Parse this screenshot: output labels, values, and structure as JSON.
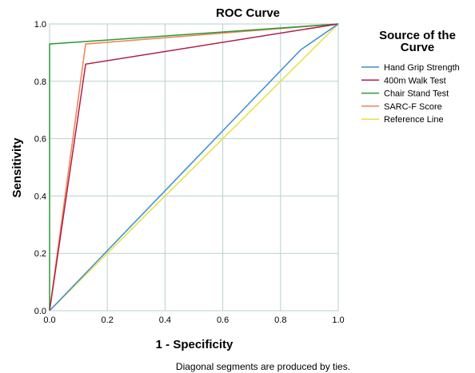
{
  "chart_data": {
    "type": "line",
    "title": "ROC Curve",
    "xlabel": "1 - Specificity",
    "ylabel": "Sensitivity",
    "xlim": [
      0,
      1
    ],
    "ylim": [
      0,
      1
    ],
    "xticks": [
      "0.0",
      "0.2",
      "0.4",
      "0.6",
      "0.8",
      "1.0"
    ],
    "yticks": [
      "0.0",
      "0.2",
      "0.4",
      "0.6",
      "0.8",
      "1.0"
    ],
    "grid": true,
    "legend": {
      "title_lines": [
        "Source of the",
        "Curve"
      ],
      "placement": "right"
    },
    "series": [
      {
        "name": "Hand Grip Strength",
        "color": "#3a8fd0",
        "points": [
          [
            0,
            0
          ],
          [
            0.87,
            0.91
          ],
          [
            1,
            1
          ]
        ]
      },
      {
        "name": "400m Walk Test",
        "color": "#b01f48",
        "points": [
          [
            0,
            0
          ],
          [
            0.125,
            0.86
          ],
          [
            1,
            1
          ]
        ]
      },
      {
        "name": "Chair Stand Test",
        "color": "#2a9a3a",
        "points": [
          [
            0,
            0
          ],
          [
            0,
            0.93
          ],
          [
            1,
            1
          ]
        ]
      },
      {
        "name": "SARC-F Score",
        "color": "#f08050",
        "points": [
          [
            0,
            0
          ],
          [
            0.125,
            0.93
          ],
          [
            1,
            1
          ]
        ]
      },
      {
        "name": "Reference Line",
        "color": "#e8e040",
        "points": [
          [
            0,
            0
          ],
          [
            1,
            1
          ]
        ]
      }
    ],
    "footnote": "Diagonal segments are produced by ties."
  }
}
